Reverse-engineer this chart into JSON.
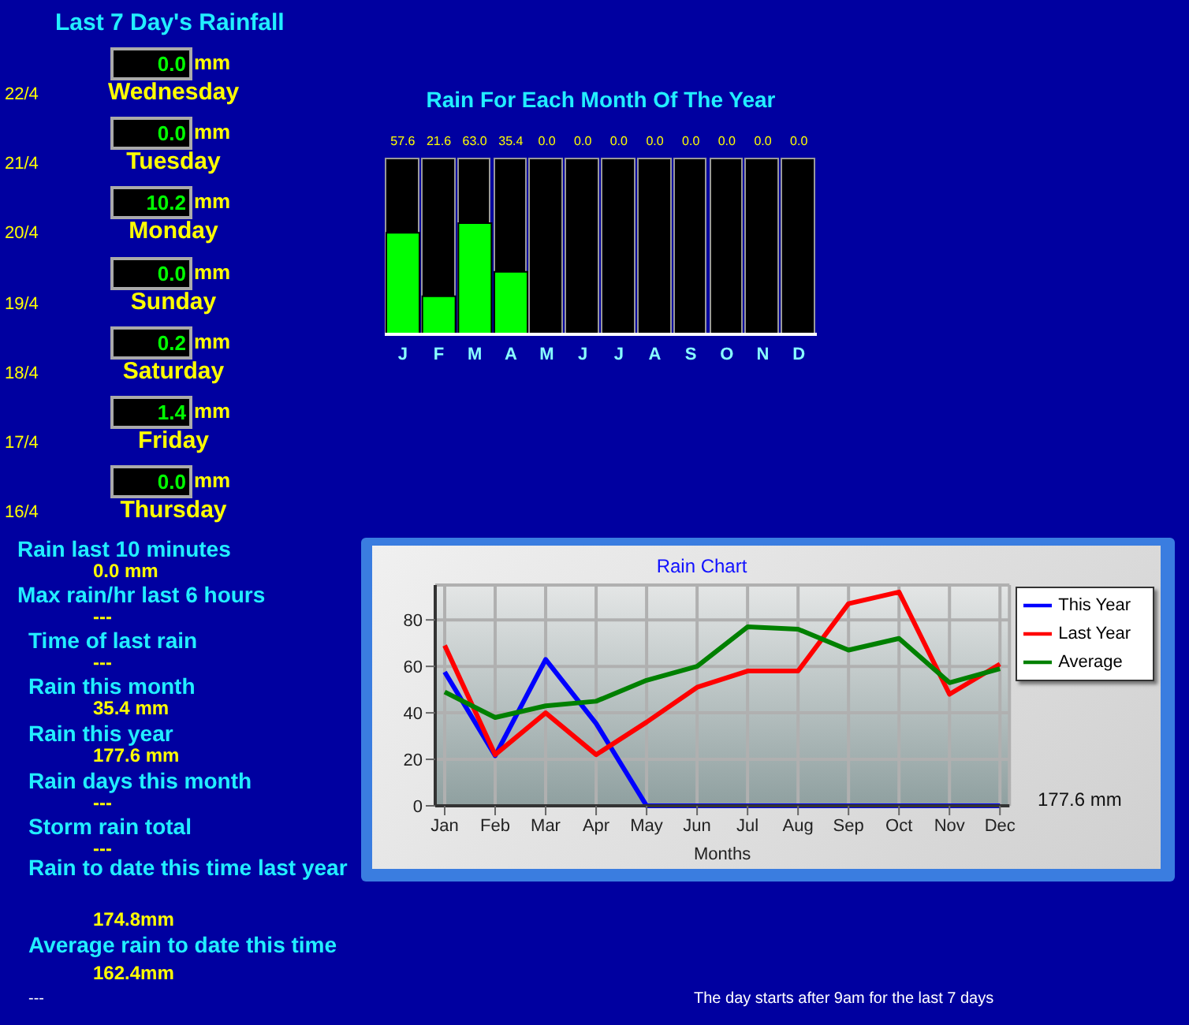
{
  "chart_data": [
    {
      "type": "other",
      "title": "Last 7 Day's Rainfall",
      "categories": [
        "Wednesday",
        "Tuesday",
        "Monday",
        "Sunday",
        "Saturday",
        "Friday",
        "Thursday"
      ],
      "y_categories": [
        "22/4",
        "21/4",
        "20/4",
        "19/4",
        "18/4",
        "17/4",
        "16/4"
      ],
      "value_labels": [
        "0.0",
        "0.0",
        "10.2",
        "0.0",
        "0.2",
        "1.4",
        "0.0"
      ],
      "ylabel": "mm"
    },
    {
      "type": "bar",
      "title": "Rain For Each Month Of The Year",
      "categories": [
        "J",
        "F",
        "M",
        "A",
        "M",
        "J",
        "J",
        "A",
        "S",
        "O",
        "N",
        "D"
      ],
      "values": [
        57.6,
        21.6,
        63.0,
        35.4,
        0.0,
        0.0,
        0.0,
        0.0,
        0.0,
        0.0,
        0.0,
        0.0
      ],
      "value_labels": [
        "57.6",
        "21.6",
        "63.0",
        "35.4",
        "0.0",
        "0.0",
        "0.0",
        "0.0",
        "0.0",
        "0.0",
        "0.0",
        "0.0"
      ],
      "color": "#00ff00"
    },
    {
      "type": "line",
      "title": "Rain Chart",
      "xlabel": "Months",
      "categories": [
        "Jan",
        "Feb",
        "Mar",
        "Apr",
        "May",
        "Jun",
        "Jul",
        "Aug",
        "Sep",
        "Oct",
        "Nov",
        "Dec"
      ],
      "ylim": [
        0,
        95
      ],
      "yticks": [
        0,
        20,
        40,
        60,
        80
      ],
      "grid": true,
      "legend": "top right",
      "annotations": [
        "177.6 mm"
      ],
      "series": [
        {
          "name": "This Year",
          "color": "#0000ff",
          "values": [
            57.6,
            21.6,
            63.0,
            35.4,
            0,
            0,
            0,
            0,
            0,
            0,
            0,
            0
          ]
        },
        {
          "name": "Last Year",
          "color": "#ff0000",
          "values": [
            69,
            22,
            40,
            22,
            36,
            51,
            58,
            58,
            87,
            92,
            48,
            61
          ]
        },
        {
          "name": "Average",
          "color": "#008000",
          "values": [
            49,
            38,
            43,
            45,
            54,
            60,
            77,
            76,
            67,
            72,
            53,
            59
          ]
        }
      ]
    },
    {
      "type": "other",
      "annotations": [
        "Rain last 10 minutes",
        "0.0 mm",
        "Max rain/hr last 6 hours",
        "---",
        "Time of last rain",
        "---",
        "Rain this month",
        "35.4 mm",
        "Rain this year",
        "177.6 mm",
        "Rain days this month",
        "---",
        "Storm rain total",
        "---",
        "Rain to date this time last year",
        "174.8mm",
        "Average rain to date this time",
        "162.4mm",
        "---",
        "The day starts after 9am for the last 7 days"
      ]
    }
  ]
}
